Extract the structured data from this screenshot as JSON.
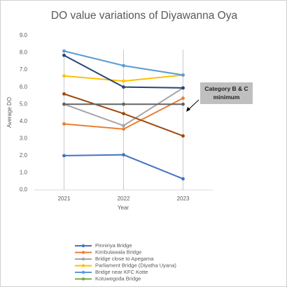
{
  "chart_data": {
    "type": "line",
    "title": "DO value variations of Diyawanna Oya",
    "x_label": "Year",
    "y_label": "Average DO",
    "annotation": "Category B & C minimum",
    "categories": [
      "2021",
      "2022",
      "2023"
    ],
    "ylim": [
      0,
      9
    ],
    "yticks": [
      {
        "value": 0,
        "label": "0.0"
      },
      {
        "value": 1,
        "label": "1.0"
      },
      {
        "value": 2,
        "label": "2.0"
      },
      {
        "value": 3,
        "label": "3.0"
      },
      {
        "value": 4,
        "label": "4.0"
      },
      {
        "value": 5,
        "label": "5.0"
      },
      {
        "value": 6,
        "label": "6.0"
      },
      {
        "value": 7,
        "label": "7.0"
      },
      {
        "value": 8,
        "label": "8.0"
      },
      {
        "value": 9,
        "label": "9.0"
      }
    ],
    "series": [
      {
        "name": "Pinniriya Bridge",
        "color": "#4472c4",
        "values": [
          2.0,
          2.05,
          0.65
        ]
      },
      {
        "name": "Kimbulawala Bridge",
        "color": "#ed7d31",
        "values": [
          3.85,
          3.55,
          5.35
        ]
      },
      {
        "name": "Bridge close to Apegama",
        "color": "#a5a5a5",
        "values": [
          5.0,
          3.75,
          5.95
        ]
      },
      {
        "name": "Parliament Bridge (Diyatha Uyana)",
        "color": "#ffc000",
        "values": [
          6.65,
          6.35,
          6.7
        ]
      },
      {
        "name": "Bridge near KFC Kotte",
        "color": "#5b9bd5",
        "values": [
          8.1,
          7.25,
          6.7
        ]
      },
      {
        "name": "Kotuwegoda Bridge",
        "color": "#70ad47",
        "values": [
          null,
          null,
          null
        ]
      },
      {
        "color": "#264478",
        "values": [
          7.85,
          6.0,
          5.95
        ]
      },
      {
        "color": "#9e480e",
        "values": [
          5.6,
          4.45,
          3.15
        ]
      },
      {
        "color": "#636363",
        "values": [
          5.0,
          5.0,
          5.0
        ]
      }
    ]
  }
}
